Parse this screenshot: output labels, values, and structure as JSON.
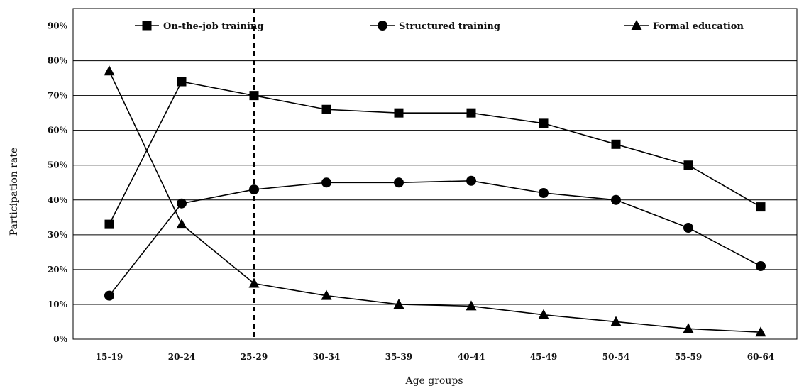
{
  "chart_data": {
    "type": "line",
    "xlabel": "Age groups",
    "ylabel": "Participation rate",
    "categories": [
      "15-19",
      "20-24",
      "25-29",
      "30-34",
      "35-39",
      "40-44",
      "45-49",
      "50-54",
      "55-59",
      "60-64"
    ],
    "ylim": [
      0,
      95
    ],
    "yticks": [
      0,
      10,
      20,
      30,
      40,
      50,
      60,
      70,
      80,
      90
    ],
    "ytick_labels": [
      "0%",
      "10%",
      "20%",
      "30%",
      "40%",
      "50%",
      "60%",
      "70%",
      "80%",
      "90%"
    ],
    "grid": "horizontal",
    "legend_position": "top",
    "reference_line": {
      "category": "25-29",
      "style": "dashed"
    },
    "series": [
      {
        "name": "On-the-job training",
        "marker": "square",
        "values": [
          33,
          74,
          70,
          66,
          65,
          65,
          62,
          56,
          50,
          38
        ]
      },
      {
        "name": "Structured training",
        "marker": "circle",
        "values": [
          12.5,
          39,
          43,
          45,
          45,
          45.5,
          42,
          40,
          32,
          21
        ]
      },
      {
        "name": "Formal education",
        "marker": "triangle",
        "values": [
          77,
          33,
          16,
          12.5,
          10,
          9.5,
          7,
          5,
          3,
          2
        ]
      }
    ],
    "colors": {
      "line": "#000000",
      "grid": "#000000"
    }
  }
}
